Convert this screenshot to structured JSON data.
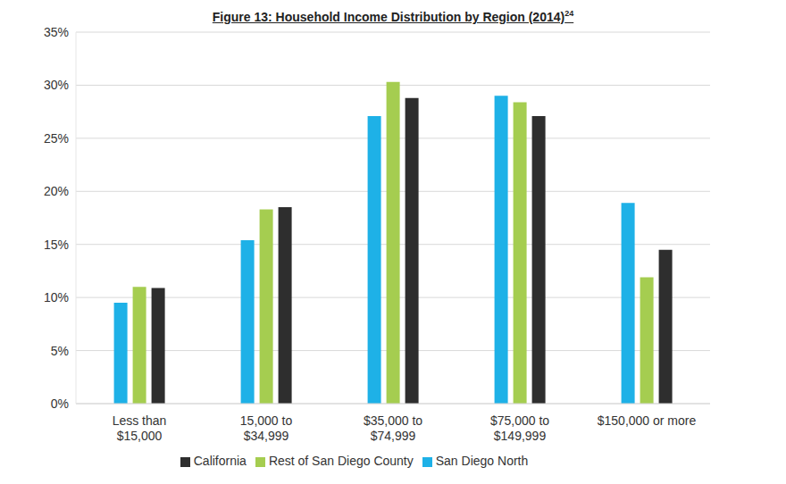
{
  "chart_data": {
    "type": "bar",
    "title": "Figure 13: Household Income Distribution by Region (2014)",
    "title_footnote": "24",
    "categories": [
      "Less than\n$15,000",
      "15,000 to\n$34,999",
      "$35,000 to\n$74,999",
      "$75,000 to\n$149,999",
      "$150,000 or more"
    ],
    "series": [
      {
        "name": "San Diego North",
        "color": "#1eb1e7",
        "values": [
          9.5,
          15.4,
          27.1,
          29.0,
          18.9
        ]
      },
      {
        "name": "Rest of San Diego County",
        "color": "#a5cd50",
        "values": [
          11.0,
          18.3,
          30.3,
          28.4,
          11.9
        ]
      },
      {
        "name": "California",
        "color": "#2e2e2e",
        "values": [
          10.9,
          18.5,
          28.8,
          27.1,
          14.5
        ]
      }
    ],
    "ylim": [
      0,
      35
    ],
    "yticks": [
      {
        "value": 0,
        "label": "0%"
      },
      {
        "value": 5,
        "label": "5%"
      },
      {
        "value": 10,
        "label": "10%"
      },
      {
        "value": 15,
        "label": "15%"
      },
      {
        "value": 20,
        "label": "20%"
      },
      {
        "value": 25,
        "label": "25%"
      },
      {
        "value": 30,
        "label": "30%"
      },
      {
        "value": 35,
        "label": "35%"
      }
    ],
    "grid": true,
    "legend": "bottom"
  }
}
